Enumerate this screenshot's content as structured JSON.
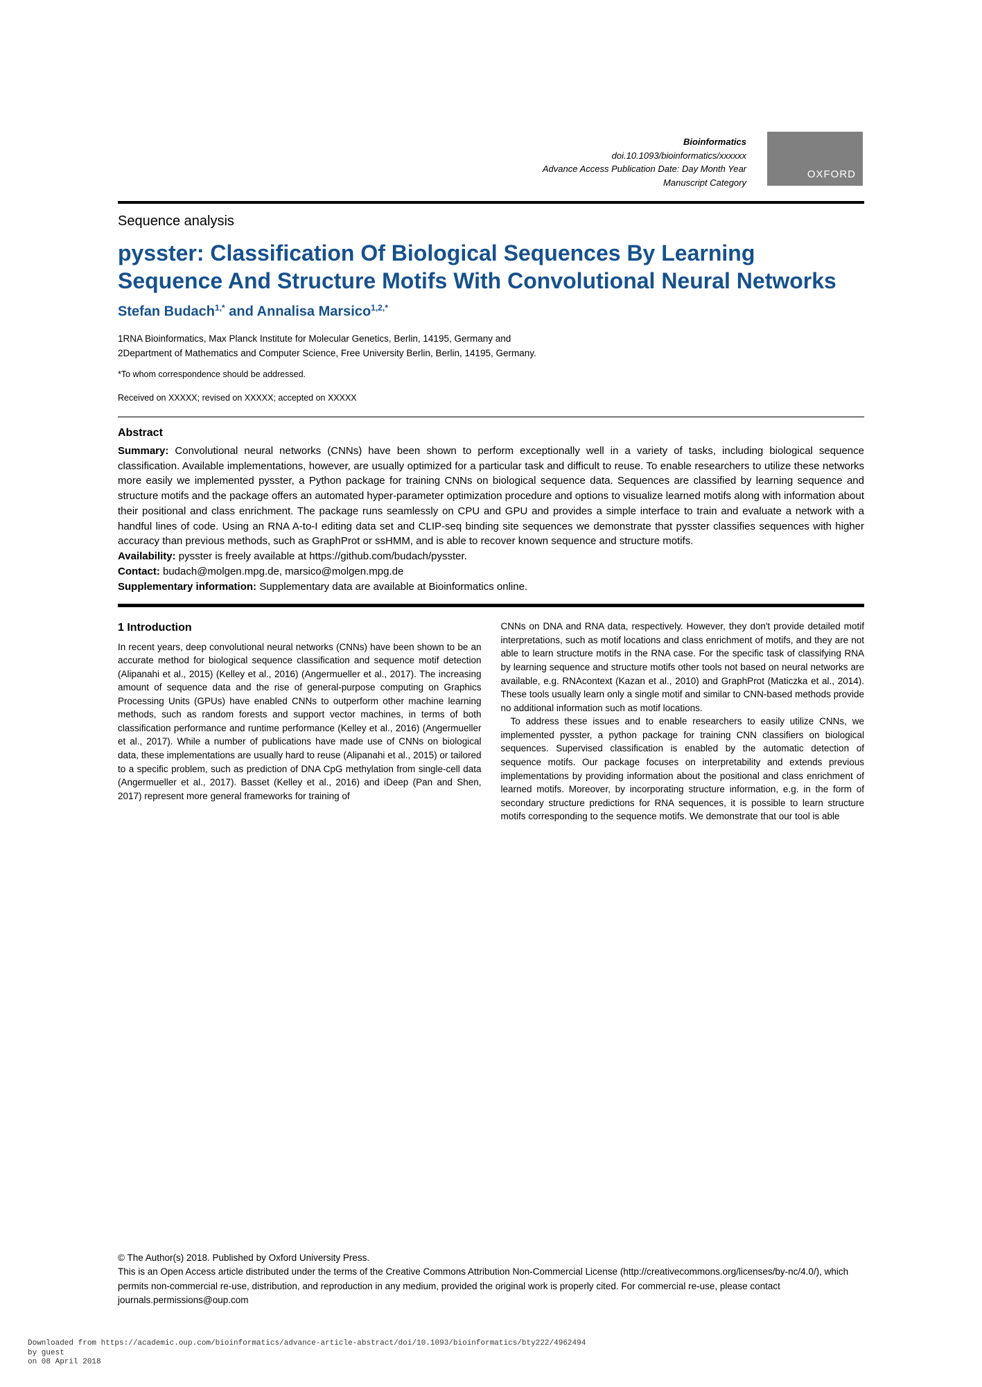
{
  "colors": {
    "title": "#16518d",
    "oxford_bg": "#808080",
    "oxford_text": "#ffffff",
    "text": "#000000",
    "background": "#ffffff"
  },
  "header": {
    "journal": "Bioinformatics",
    "doi": "doi.10.1093/bioinformatics/xxxxxx",
    "advance": "Advance Access Publication Date: Day Month Year",
    "category": "Manuscript Category",
    "publisher_badge": "OXFORD"
  },
  "section_label": "Sequence analysis",
  "title": "pysster: Classification Of Biological Sequences By Learning Sequence And Structure Motifs With Convolutional Neural Networks",
  "authors_html": "Stefan Budach 1,* and Annalisa Marsico 1,2,*",
  "authors": {
    "a1": "Stefan Budach",
    "a1_sup": "1,*",
    "and": " and ",
    "a2": "Annalisa Marsico",
    "a2_sup": "1,2,*"
  },
  "affiliations": {
    "l1": "1RNA Bioinformatics, Max Planck Institute for Molecular Genetics, Berlin, 14195, Germany and",
    "l2": "2Department of Mathematics and Computer Science, Free University Berlin, Berlin, 14195, Germany."
  },
  "correspondence": "*To whom correspondence should be addressed.",
  "received": "Received on XXXXX; revised on XXXXX; accepted on XXXXX",
  "abstract": {
    "heading": "Abstract",
    "summary_label": "Summary:",
    "summary": " Convolutional neural networks (CNNs) have been shown to perform exceptionally well in a variety of tasks, including biological sequence classification. Available implementations, however, are usually optimized for a particular task and difficult to reuse. To enable researchers to utilize these networks more easily we implemented pysster, a Python package for training CNNs on biological sequence data. Sequences are classified by learning sequence and structure motifs and the package offers an automated hyper-parameter optimization procedure and options to visualize learned motifs along with information about their positional and class enrichment. The package runs seamlessly on CPU and GPU and provides a simple interface to train and evaluate a network with a handful lines of code. Using an RNA A-to-I editing data set and CLIP-seq binding site sequences we demonstrate that pysster classifies sequences with higher accuracy than previous methods, such as GraphProt or ssHMM, and is able to recover known sequence and structure motifs.",
    "availability_label": "Availability:",
    "availability": " pysster is freely available at https://github.com/budach/pysster.",
    "contact_label": "Contact:",
    "contact": " budach@molgen.mpg.de, marsico@molgen.mpg.de",
    "supp_label": "Supplementary information:",
    "supp": " Supplementary data are available at Bioinformatics online."
  },
  "intro": {
    "heading": "1 Introduction",
    "col1": "In recent years, deep convolutional neural networks (CNNs) have been shown to be an accurate method for biological sequence classification and sequence motif detection (Alipanahi et al., 2015) (Kelley et al., 2016) (Angermueller et al., 2017). The increasing amount of sequence data and the rise of general-purpose computing on Graphics Processing Units (GPUs) have enabled CNNs to outperform other machine learning methods, such as random forests and support vector machines, in terms of both classification performance and runtime performance (Kelley et al., 2016) (Angermueller et al., 2017). While a number of publications have made use of CNNs on biological data, these implementations are usually hard to reuse (Alipanahi et al., 2015) or tailored to a specific problem, such as prediction of DNA CpG methylation from single-cell data (Angermueller et al., 2017). Basset (Kelley et al., 2016) and iDeep (Pan and Shen, 2017) represent more general frameworks for training of",
    "col2a": "CNNs on DNA and RNA data, respectively. However, they don't provide detailed motif interpretations, such as motif locations and class enrichment of motifs, and they are not able to learn structure motifs in the RNA case. For the specific task of classifying RNA by learning sequence and structure motifs other tools not based on neural networks are available, e.g. RNAcontext (Kazan et al., 2010) and GraphProt (Maticzka et al., 2014). These tools usually learn only a single motif and similar to CNN-based methods provide no additional information such as motif locations.",
    "col2b": "To address these issues and to enable researchers to easily utilize CNNs, we implemented pysster, a python package for training CNN classifiers on biological sequences. Supervised classification is enabled by the automatic detection of sequence motifs. Our package focuses on interpretability and extends previous implementations by providing information about the positional and class enrichment of learned motifs. Moreover, by incorporating structure information, e.g. in the form of secondary structure predictions for RNA sequences, it is possible to learn structure motifs corresponding to the sequence motifs. We demonstrate that our tool is able"
  },
  "footer": {
    "copyright": "© The Author(s) 2018. Published by Oxford University Press.",
    "license": "This is an Open Access article distributed under the terms of the Creative Commons Attribution Non-Commercial License (http://creativecommons.org/licenses/by-nc/4.0/), which permits non-commercial re-use, distribution, and reproduction in any medium, provided the original work is properly cited. For commercial re-use, please contact journals.permissions@oup.com"
  },
  "download": "Downloaded from https://academic.oup.com/bioinformatics/advance-article-abstract/doi/10.1093/bioinformatics/bty222/4962494\nby guest\non 08 April 2018"
}
